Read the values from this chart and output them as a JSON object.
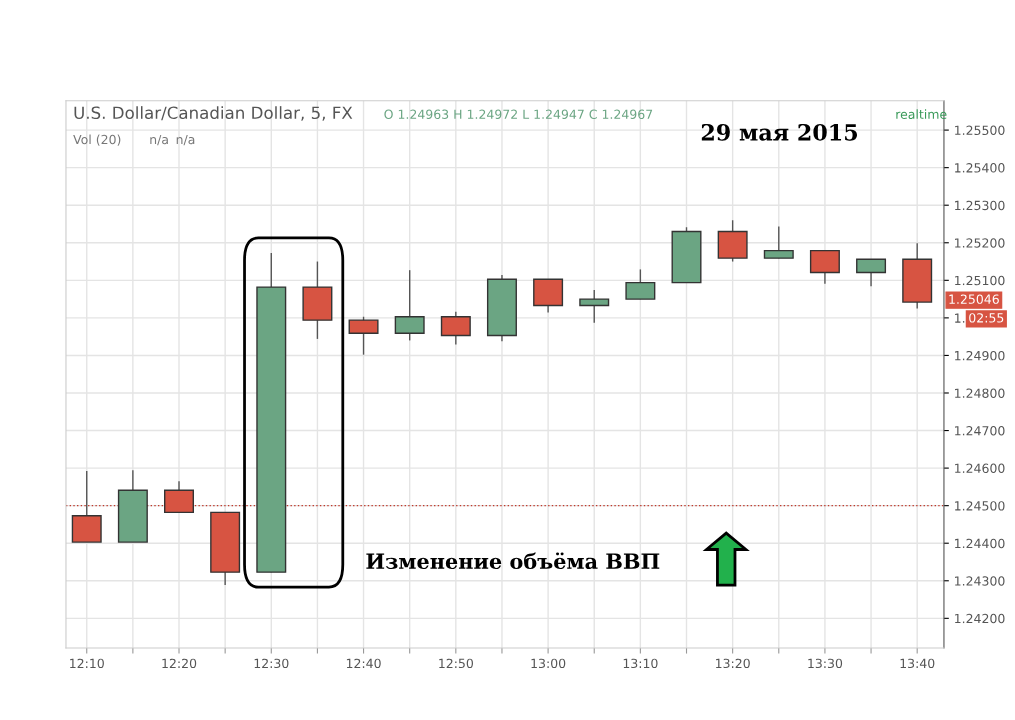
{
  "chart_data": {
    "type": "candlestick",
    "title": "U.S. Dollar/Canadian Dollar, 5, FX",
    "subtitle": "O 1.24963 H 1.24972 L 1.24947 C 1.24967",
    "categories": [
      "12:10",
      null,
      "12:20",
      null,
      "12:30",
      null,
      "12:40",
      null,
      "12:50",
      null,
      "13:00",
      null,
      "13:10",
      null,
      "13:20",
      null,
      "13:30",
      null,
      "13:40"
    ],
    "ohlc": [
      [
        1.24473,
        1.24592,
        1.24403,
        1.24403
      ],
      [
        1.24403,
        1.24594,
        1.24403,
        1.24541
      ],
      [
        1.24541,
        1.24565,
        1.24482,
        1.24482
      ],
      [
        1.24482,
        1.24482,
        1.24289,
        1.24323
      ],
      [
        1.24323,
        1.25173,
        1.24323,
        1.25082
      ],
      [
        1.25082,
        1.2515,
        1.24944,
        1.24994
      ],
      [
        1.24994,
        1.25003,
        1.24902,
        1.24959
      ],
      [
        1.24959,
        1.25127,
        1.2494,
        1.25003
      ],
      [
        1.25003,
        1.25016,
        1.24929,
        1.24953
      ],
      [
        1.24953,
        1.25114,
        1.24938,
        1.25103
      ],
      [
        1.25103,
        1.25103,
        1.25014,
        1.25033
      ],
      [
        1.25033,
        1.25074,
        1.24987,
        1.2505
      ],
      [
        1.2505,
        1.25129,
        1.2505,
        1.25094
      ],
      [
        1.25094,
        1.25241,
        1.25094,
        1.2523
      ],
      [
        1.2523,
        1.2526,
        1.2515,
        1.25159
      ],
      [
        1.25159,
        1.25243,
        1.25159,
        1.25179
      ],
      [
        1.25179,
        1.25179,
        1.25091,
        1.25121
      ],
      [
        1.25121,
        1.25156,
        1.25084,
        1.25156
      ],
      [
        1.25156,
        1.25199,
        1.25025,
        1.25042
      ]
    ],
    "colors": [
      "#d75442",
      "#6ba583",
      "#d75442",
      "#d75442",
      "#6ba583",
      "#d75442",
      "#d75442",
      "#6ba583",
      "#d75442",
      "#6ba583",
      "#d75442",
      "#6ba583",
      "#6ba583",
      "#6ba583",
      "#d75442",
      "#6ba583",
      "#d75442",
      "#6ba583",
      "#d75442"
    ],
    "ylim": [
      1.24121,
      1.25578
    ],
    "yticks": [
      {
        "value": 1.242,
        "label": "1.24200"
      },
      {
        "value": 1.243,
        "label": "1.24300"
      },
      {
        "value": 1.244,
        "label": "1.24400"
      },
      {
        "value": 1.245,
        "label": "1.24500"
      },
      {
        "value": 1.246,
        "label": "1.24600"
      },
      {
        "value": 1.247,
        "label": "1.24700"
      },
      {
        "value": 1.248,
        "label": "1.24800"
      },
      {
        "value": 1.249,
        "label": "1.24900"
      },
      {
        "value": 1.25,
        "label": "1."
      },
      {
        "value": 1.251,
        "label": "1.25100"
      },
      {
        "value": 1.252,
        "label": "1.25200"
      },
      {
        "value": 1.253,
        "label": "1.25300"
      },
      {
        "value": 1.254,
        "label": "1.25400"
      },
      {
        "value": 1.255,
        "label": "1.25500"
      }
    ],
    "grid": true,
    "ref_lines": [
      {
        "axis": "y",
        "value": 1.245,
        "color": "#c0392b",
        "line_style": "dotted"
      }
    ],
    "annotations": [
      "Vol (20)",
      "n/a",
      "n/a",
      "realtime",
      "29 мая 2015",
      "Изменение объёма ВВП",
      "1.25046",
      "02:55"
    ]
  }
}
